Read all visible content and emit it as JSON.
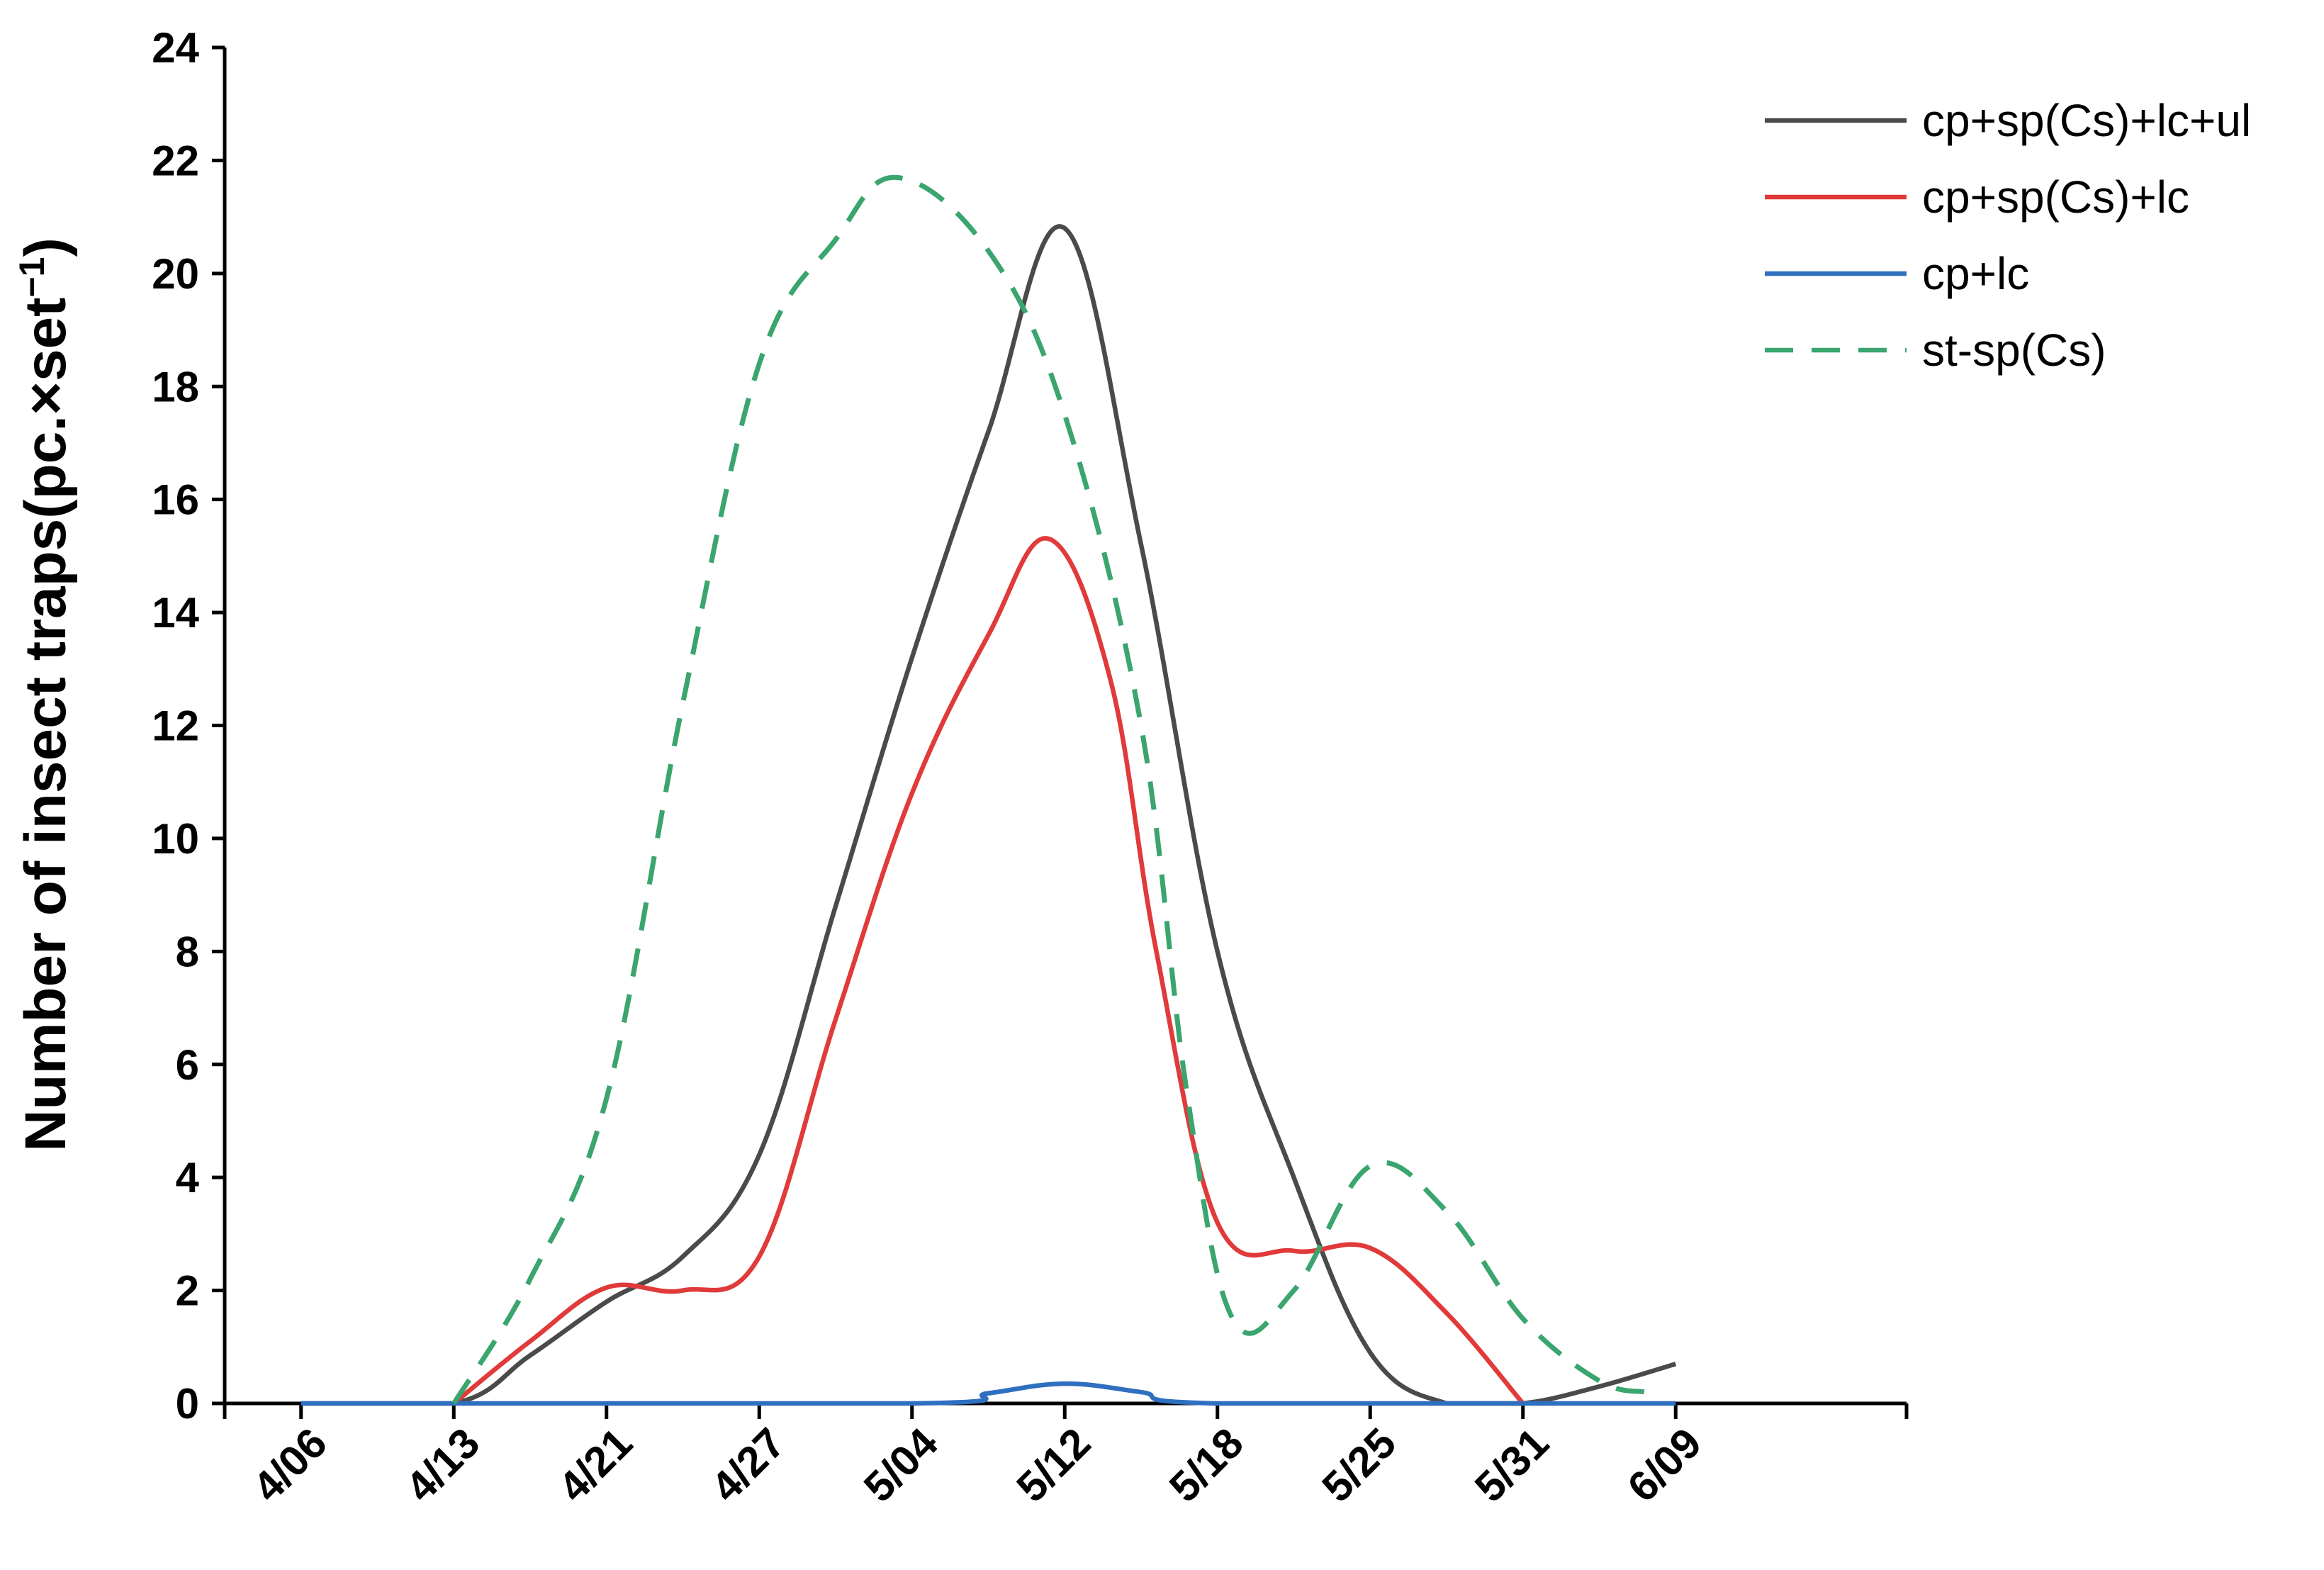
{
  "chart_data": {
    "type": "line",
    "title": "",
    "xlabel": "",
    "ylabel": "Number of insect traps(pc.×set",
    "ylabel_sup": "−1",
    "ylabel_close": ")",
    "categories": [
      "4/06",
      "4/13",
      "4/21",
      "4/27",
      "5/04",
      "5/12",
      "5/18",
      "5/25",
      "5/31",
      "6/09"
    ],
    "ylim": [
      0,
      24
    ],
    "yticks": [
      "0",
      "2",
      "4",
      "6",
      "8",
      "10",
      "12",
      "14",
      "16",
      "18",
      "20",
      "22",
      "24"
    ],
    "grid": false,
    "legend_position": "top-right",
    "series": [
      {
        "name": "cp+sp(Cs)+lc+ul",
        "color": "#4a4a4a",
        "dash": false,
        "points": [
          [
            0,
            0
          ],
          [
            1,
            0
          ],
          [
            1.5,
            0.85
          ],
          [
            2,
            1.8
          ],
          [
            2.5,
            2.6
          ],
          [
            3,
            4.4
          ],
          [
            3.5,
            8.8
          ],
          [
            4,
            13.2
          ],
          [
            4.5,
            17.2
          ],
          [
            5,
            20.8
          ],
          [
            5.5,
            15.2
          ],
          [
            6,
            8
          ],
          [
            6.5,
            4
          ],
          [
            7,
            0.9
          ],
          [
            7.5,
            0
          ],
          [
            8,
            0
          ],
          [
            8.5,
            0.3
          ],
          [
            9,
            0.7
          ]
        ]
      },
      {
        "name": "cp+sp(Cs)+lc",
        "color": "#e03a3a",
        "dash": false,
        "points": [
          [
            1,
            0
          ],
          [
            1.5,
            1.1
          ],
          [
            2,
            2.05
          ],
          [
            2.5,
            2.0
          ],
          [
            3,
            2.6
          ],
          [
            3.5,
            6.8
          ],
          [
            4,
            10.8
          ],
          [
            4.5,
            13.6
          ],
          [
            4.9,
            15.3
          ],
          [
            5.3,
            12.8
          ],
          [
            5.6,
            8.0
          ],
          [
            6,
            3.2
          ],
          [
            6.5,
            2.7
          ],
          [
            7,
            2.75
          ],
          [
            7.5,
            1.6
          ],
          [
            8,
            0
          ]
        ]
      },
      {
        "name": "cp+lc",
        "color": "#2f6fbf",
        "dash": false,
        "points": [
          [
            0,
            0
          ],
          [
            4,
            0
          ],
          [
            4.5,
            0.18
          ],
          [
            5,
            0.35
          ],
          [
            5.5,
            0.2
          ],
          [
            6,
            0
          ],
          [
            9,
            0
          ]
        ]
      },
      {
        "name": "st-sp(Cs)",
        "color": "#3aa56e",
        "dash": true,
        "points": [
          [
            1,
            0
          ],
          [
            1.5,
            2.2
          ],
          [
            2,
            5.4
          ],
          [
            2.5,
            12.4
          ],
          [
            3,
            18.4
          ],
          [
            3.5,
            20.6
          ],
          [
            3.9,
            21.7
          ],
          [
            4.5,
            20.4
          ],
          [
            5,
            17.5
          ],
          [
            5.5,
            12.0
          ],
          [
            5.8,
            5.5
          ],
          [
            6.1,
            1.5
          ],
          [
            6.5,
            2.0
          ],
          [
            7,
            4.2
          ],
          [
            7.5,
            3.4
          ],
          [
            8,
            1.5
          ],
          [
            8.5,
            0.4
          ],
          [
            8.8,
            0.2
          ]
        ]
      }
    ]
  }
}
